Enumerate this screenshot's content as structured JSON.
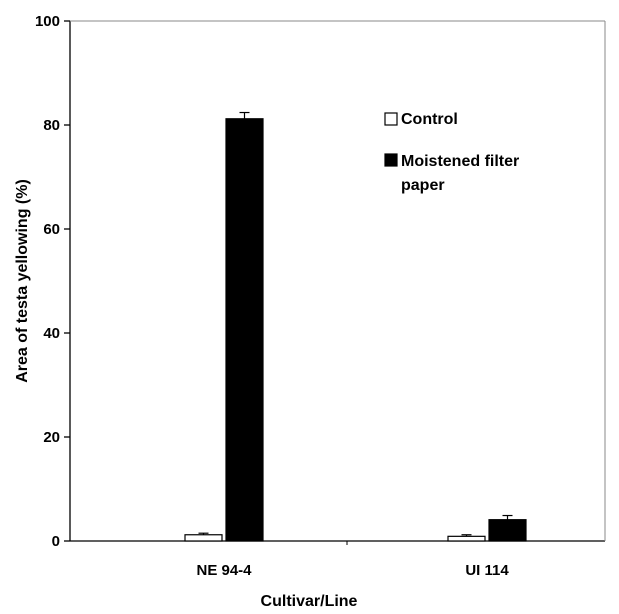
{
  "chart_data": {
    "type": "bar",
    "title": "",
    "xlabel": "Cultivar/Line",
    "ylabel": "Area of testa yellowing (%)",
    "ylim": [
      0,
      100
    ],
    "yticks": [
      0,
      20,
      40,
      60,
      80,
      100
    ],
    "categories": [
      "NE 94-4",
      "UI 114"
    ],
    "series": [
      {
        "name": "Control",
        "values": [
          1.2,
          0.9
        ],
        "errors": [
          0.3,
          0.3
        ],
        "color": "#ffffff"
      },
      {
        "name": "Moistened filter paper",
        "values": [
          81.2,
          4.1
        ],
        "errors": [
          1.2,
          0.8
        ],
        "color": "#000000"
      }
    ],
    "legend": {
      "position": "top-right",
      "entries": [
        "Control",
        "Moistened filter",
        "paper"
      ]
    },
    "grid": false
  }
}
